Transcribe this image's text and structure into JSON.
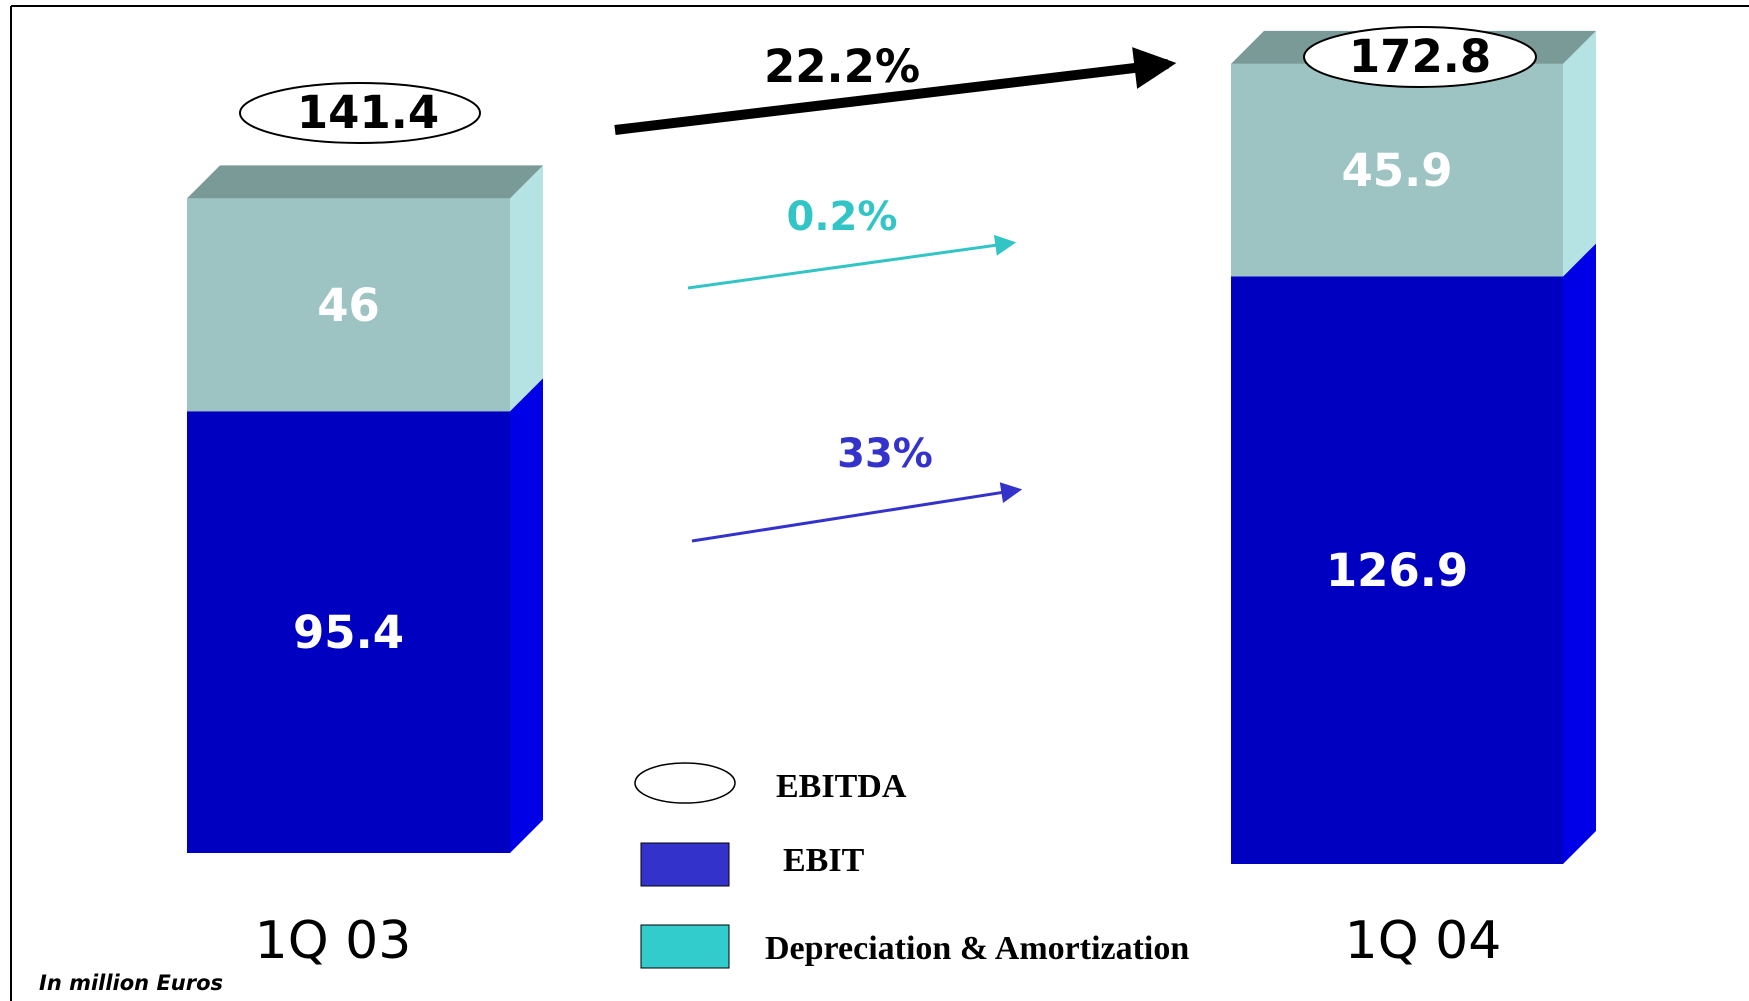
{
  "chart_data": {
    "type": "bar",
    "stacked": true,
    "three_d": true,
    "categories": [
      "1Q 03",
      "1Q 04"
    ],
    "series": [
      {
        "name": "EBIT",
        "values": [
          95.4,
          126.9
        ],
        "labels": [
          "95.4",
          "126.9"
        ]
      },
      {
        "name": "Depreciation & Amortization",
        "values": [
          46,
          45.9
        ],
        "labels": [
          "46",
          "45.9"
        ]
      }
    ],
    "totals": {
      "name": "EBITDA",
      "values": [
        141.4,
        172.8
      ],
      "labels": [
        "141.4",
        "172.8"
      ]
    },
    "growth": [
      {
        "series": "EBITDA",
        "label": "22.2%"
      },
      {
        "series": "Depreciation & Amortization",
        "label": "0.2%"
      },
      {
        "series": "EBIT",
        "label": "33%"
      }
    ],
    "legend": {
      "position": "bottom-center",
      "items": [
        {
          "label": "EBITDA",
          "marker": "ellipse"
        },
        {
          "label": "EBIT",
          "marker": "square"
        },
        {
          "label": "Depreciation & Amortization",
          "marker": "square"
        }
      ]
    },
    "footnote": "In million Euros",
    "grid": false
  },
  "colors": {
    "ebit_front": "#0000c0",
    "ebit_side": "#0000e6",
    "da_front": "#9dc3c3",
    "da_side": "#b5e2e2",
    "top_face": "#7a9a98",
    "ebitda_arrow": "#000000",
    "da_arrow": "#33c5c5",
    "ebit_arrow": "#3333cc",
    "legend_ebit": "#3333cc",
    "legend_da": "#33cccc",
    "border": "#000000"
  }
}
